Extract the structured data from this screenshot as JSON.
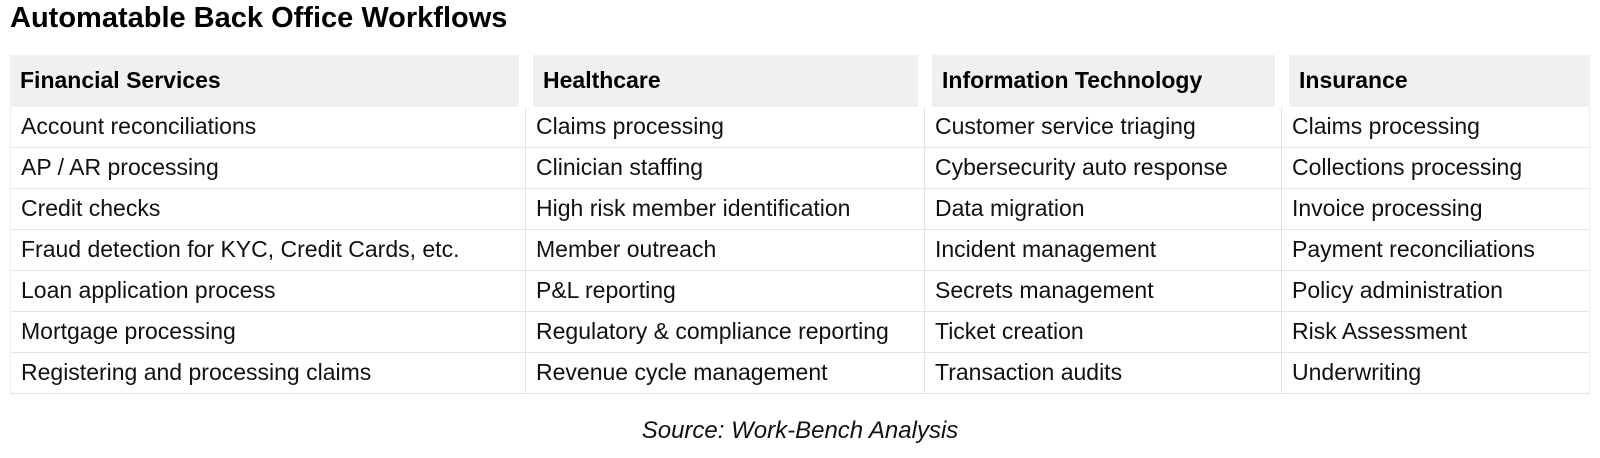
{
  "title": "Automatable Back Office Workflows",
  "source": "Source: Work-Bench Analysis",
  "colors": {
    "header_background": "#f0f0f0",
    "grid_line": "#e4e4e4",
    "text": "#111111"
  },
  "chart_data": {
    "type": "table",
    "title": "Automatable Back Office Workflows",
    "columns": [
      "Financial Services",
      "Healthcare",
      "Information Technology",
      "Insurance"
    ],
    "rows": [
      [
        "Account reconciliations",
        "Claims processing",
        "Customer service triaging",
        "Claims processing"
      ],
      [
        "AP / AR processing",
        "Clinician staffing",
        "Cybersecurity auto response",
        "Collections processing"
      ],
      [
        "Credit checks",
        "High risk member identification",
        "Data migration",
        "Invoice processing"
      ],
      [
        "Fraud detection for KYC, Credit Cards, etc.",
        "Member outreach",
        "Incident management",
        "Payment reconciliations"
      ],
      [
        "Loan application process",
        "P&L reporting",
        "Secrets management",
        "Policy administration"
      ],
      [
        "Mortgage processing",
        "Regulatory & compliance reporting",
        "Ticket creation",
        "Risk Assessment"
      ],
      [
        "Registering and processing claims",
        "Revenue cycle management",
        "Transaction audits",
        "Underwriting"
      ]
    ],
    "source": "Source: Work-Bench Analysis",
    "layout": {
      "grid": "on",
      "header_row": true,
      "legend": "none"
    }
  }
}
